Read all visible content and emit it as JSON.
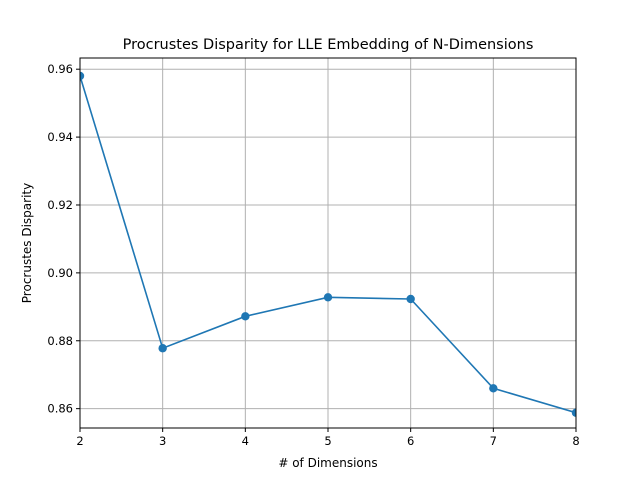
{
  "chart_data": {
    "type": "line",
    "title": "Procrustes Disparity for LLE Embedding of N-Dimensions",
    "xlabel": "# of Dimensions",
    "ylabel": "Procrustes Disparity",
    "x": [
      2,
      3,
      4,
      5,
      6,
      7,
      8
    ],
    "series": [
      {
        "values": [
          0.958,
          0.8778,
          0.8872,
          0.8928,
          0.8923,
          0.866,
          0.8588
        ],
        "color": "#1f77b4"
      }
    ],
    "xlim": [
      2,
      8
    ],
    "ylim": [
      0.8543,
      0.9633
    ],
    "xticks": [
      "2",
      "3",
      "4",
      "5",
      "6",
      "7",
      "8"
    ],
    "yticks": [
      "0.86",
      "0.88",
      "0.90",
      "0.92",
      "0.94",
      "0.96"
    ],
    "grid": true
  }
}
